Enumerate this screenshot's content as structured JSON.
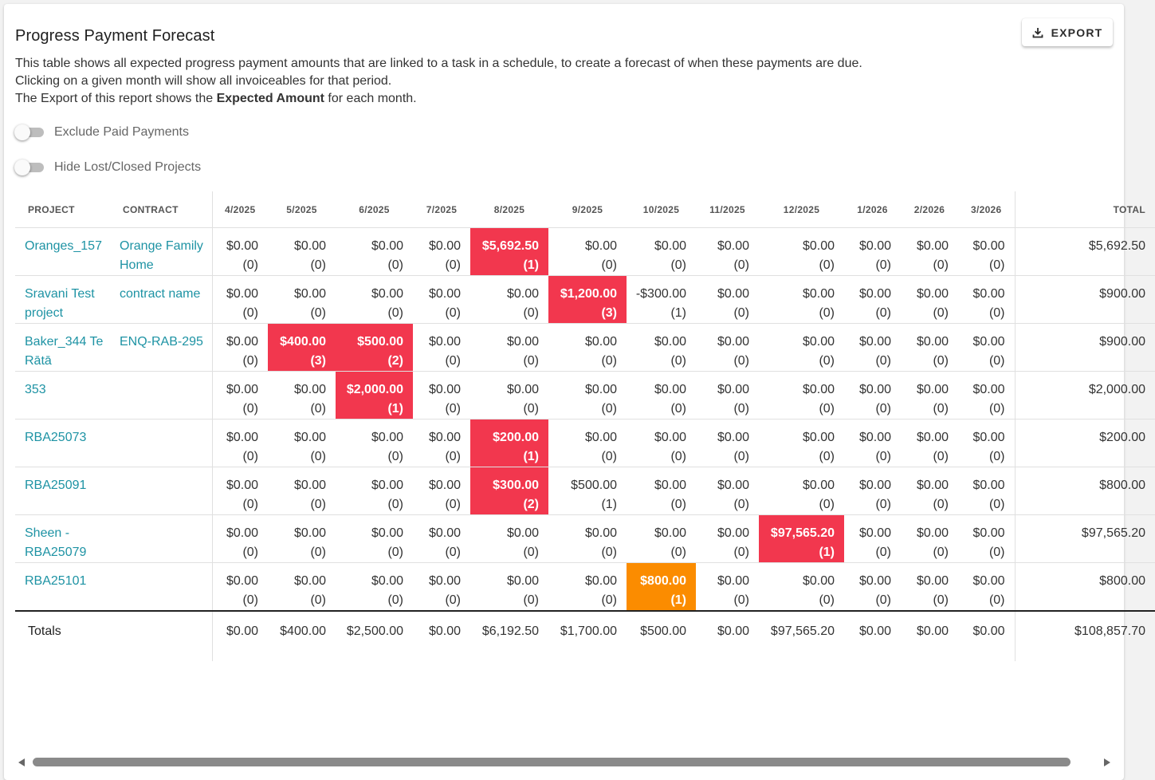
{
  "title": "Progress Payment Forecast",
  "export_label": "EXPORT",
  "description": {
    "line1": "This table shows all expected progress payment amounts that are linked to a task in a schedule, to create a forecast of when these payments are due.",
    "line2": "Clicking on a given month will show all invoiceables for that period.",
    "line3_prefix": "The Export of this report shows the ",
    "line3_bold": "Expected Amount",
    "line3_suffix": " for each month."
  },
  "toggles": [
    {
      "label": "Exclude Paid Payments",
      "checked": false
    },
    {
      "label": "Hide Lost/Closed Projects",
      "checked": false
    }
  ],
  "columns": {
    "project": "PROJECT",
    "contract": "CONTRACT",
    "months": [
      "4/2025",
      "5/2025",
      "6/2025",
      "7/2025",
      "8/2025",
      "9/2025",
      "10/2025",
      "11/2025",
      "12/2025",
      "1/2026",
      "2/2026",
      "3/2026"
    ],
    "total": "TOTAL"
  },
  "rows": [
    {
      "project": "Oranges_157",
      "contract": "Orange Family Home",
      "cells": [
        [
          "$0.00",
          "(0)",
          ""
        ],
        [
          "$0.00",
          "(0)",
          ""
        ],
        [
          "$0.00",
          "(0)",
          ""
        ],
        [
          "$0.00",
          "(0)",
          ""
        ],
        [
          "$5,692.50",
          "(1)",
          "red"
        ],
        [
          "$0.00",
          "(0)",
          ""
        ],
        [
          "$0.00",
          "(0)",
          ""
        ],
        [
          "$0.00",
          "(0)",
          ""
        ],
        [
          "$0.00",
          "(0)",
          ""
        ],
        [
          "$0.00",
          "(0)",
          ""
        ],
        [
          "$0.00",
          "(0)",
          ""
        ],
        [
          "$0.00",
          "(0)",
          ""
        ]
      ],
      "total": "$5,692.50"
    },
    {
      "project": "Sravani Test project",
      "contract": "contract name",
      "cells": [
        [
          "$0.00",
          "(0)",
          ""
        ],
        [
          "$0.00",
          "(0)",
          ""
        ],
        [
          "$0.00",
          "(0)",
          ""
        ],
        [
          "$0.00",
          "(0)",
          ""
        ],
        [
          "$0.00",
          "(0)",
          ""
        ],
        [
          "$1,200.00",
          "(3)",
          "red"
        ],
        [
          "-$300.00",
          "(1)",
          ""
        ],
        [
          "$0.00",
          "(0)",
          ""
        ],
        [
          "$0.00",
          "(0)",
          ""
        ],
        [
          "$0.00",
          "(0)",
          ""
        ],
        [
          "$0.00",
          "(0)",
          ""
        ],
        [
          "$0.00",
          "(0)",
          ""
        ]
      ],
      "total": "$900.00"
    },
    {
      "project": "Baker_344 Te Rātā",
      "contract": "ENQ-RAB-295",
      "cells": [
        [
          "$0.00",
          "(0)",
          ""
        ],
        [
          "$400.00",
          "(3)",
          "red"
        ],
        [
          "$500.00",
          "(2)",
          "red"
        ],
        [
          "$0.00",
          "(0)",
          ""
        ],
        [
          "$0.00",
          "(0)",
          ""
        ],
        [
          "$0.00",
          "(0)",
          ""
        ],
        [
          "$0.00",
          "(0)",
          ""
        ],
        [
          "$0.00",
          "(0)",
          ""
        ],
        [
          "$0.00",
          "(0)",
          ""
        ],
        [
          "$0.00",
          "(0)",
          ""
        ],
        [
          "$0.00",
          "(0)",
          ""
        ],
        [
          "$0.00",
          "(0)",
          ""
        ]
      ],
      "total": "$900.00"
    },
    {
      "project": "353",
      "contract": "",
      "cells": [
        [
          "$0.00",
          "(0)",
          ""
        ],
        [
          "$0.00",
          "(0)",
          ""
        ],
        [
          "$2,000.00",
          "(1)",
          "red"
        ],
        [
          "$0.00",
          "(0)",
          ""
        ],
        [
          "$0.00",
          "(0)",
          ""
        ],
        [
          "$0.00",
          "(0)",
          ""
        ],
        [
          "$0.00",
          "(0)",
          ""
        ],
        [
          "$0.00",
          "(0)",
          ""
        ],
        [
          "$0.00",
          "(0)",
          ""
        ],
        [
          "$0.00",
          "(0)",
          ""
        ],
        [
          "$0.00",
          "(0)",
          ""
        ],
        [
          "$0.00",
          "(0)",
          ""
        ]
      ],
      "total": "$2,000.00"
    },
    {
      "project": "RBA25073",
      "contract": "",
      "cells": [
        [
          "$0.00",
          "(0)",
          ""
        ],
        [
          "$0.00",
          "(0)",
          ""
        ],
        [
          "$0.00",
          "(0)",
          ""
        ],
        [
          "$0.00",
          "(0)",
          ""
        ],
        [
          "$200.00",
          "(1)",
          "red"
        ],
        [
          "$0.00",
          "(0)",
          ""
        ],
        [
          "$0.00",
          "(0)",
          ""
        ],
        [
          "$0.00",
          "(0)",
          ""
        ],
        [
          "$0.00",
          "(0)",
          ""
        ],
        [
          "$0.00",
          "(0)",
          ""
        ],
        [
          "$0.00",
          "(0)",
          ""
        ],
        [
          "$0.00",
          "(0)",
          ""
        ]
      ],
      "total": "$200.00"
    },
    {
      "project": "RBA25091",
      "contract": "",
      "cells": [
        [
          "$0.00",
          "(0)",
          ""
        ],
        [
          "$0.00",
          "(0)",
          ""
        ],
        [
          "$0.00",
          "(0)",
          ""
        ],
        [
          "$0.00",
          "(0)",
          ""
        ],
        [
          "$300.00",
          "(2)",
          "red"
        ],
        [
          "$500.00",
          "(1)",
          ""
        ],
        [
          "$0.00",
          "(0)",
          ""
        ],
        [
          "$0.00",
          "(0)",
          ""
        ],
        [
          "$0.00",
          "(0)",
          ""
        ],
        [
          "$0.00",
          "(0)",
          ""
        ],
        [
          "$0.00",
          "(0)",
          ""
        ],
        [
          "$0.00",
          "(0)",
          ""
        ]
      ],
      "total": "$800.00"
    },
    {
      "project": "Sheen - RBA25079",
      "contract": "",
      "cells": [
        [
          "$0.00",
          "(0)",
          ""
        ],
        [
          "$0.00",
          "(0)",
          ""
        ],
        [
          "$0.00",
          "(0)",
          ""
        ],
        [
          "$0.00",
          "(0)",
          ""
        ],
        [
          "$0.00",
          "(0)",
          ""
        ],
        [
          "$0.00",
          "(0)",
          ""
        ],
        [
          "$0.00",
          "(0)",
          ""
        ],
        [
          "$0.00",
          "(0)",
          ""
        ],
        [
          "$97,565.20",
          "(1)",
          "red"
        ],
        [
          "$0.00",
          "(0)",
          ""
        ],
        [
          "$0.00",
          "(0)",
          ""
        ],
        [
          "$0.00",
          "(0)",
          ""
        ]
      ],
      "total": "$97,565.20"
    },
    {
      "project": "RBA25101",
      "contract": "",
      "cells": [
        [
          "$0.00",
          "(0)",
          ""
        ],
        [
          "$0.00",
          "(0)",
          ""
        ],
        [
          "$0.00",
          "(0)",
          ""
        ],
        [
          "$0.00",
          "(0)",
          ""
        ],
        [
          "$0.00",
          "(0)",
          ""
        ],
        [
          "$0.00",
          "(0)",
          ""
        ],
        [
          "$800.00",
          "(1)",
          "orange"
        ],
        [
          "$0.00",
          "(0)",
          ""
        ],
        [
          "$0.00",
          "(0)",
          ""
        ],
        [
          "$0.00",
          "(0)",
          ""
        ],
        [
          "$0.00",
          "(0)",
          ""
        ],
        [
          "$0.00",
          "(0)",
          ""
        ]
      ],
      "total": "$800.00"
    }
  ],
  "totals": {
    "label": "Totals",
    "months": [
      "$0.00",
      "$400.00",
      "$2,500.00",
      "$0.00",
      "$6,192.50",
      "$1,700.00",
      "$500.00",
      "$0.00",
      "$97,565.20",
      "$0.00",
      "$0.00",
      "$0.00"
    ],
    "grand": "$108,857.70"
  },
  "colors": {
    "accent": "#1e93a4",
    "highlight_red": "#f2374e",
    "highlight_orange": "#fb8c00"
  },
  "icons": {
    "export": "download-icon",
    "scroll_left": "arrow-left-icon",
    "scroll_right": "arrow-right-icon"
  }
}
